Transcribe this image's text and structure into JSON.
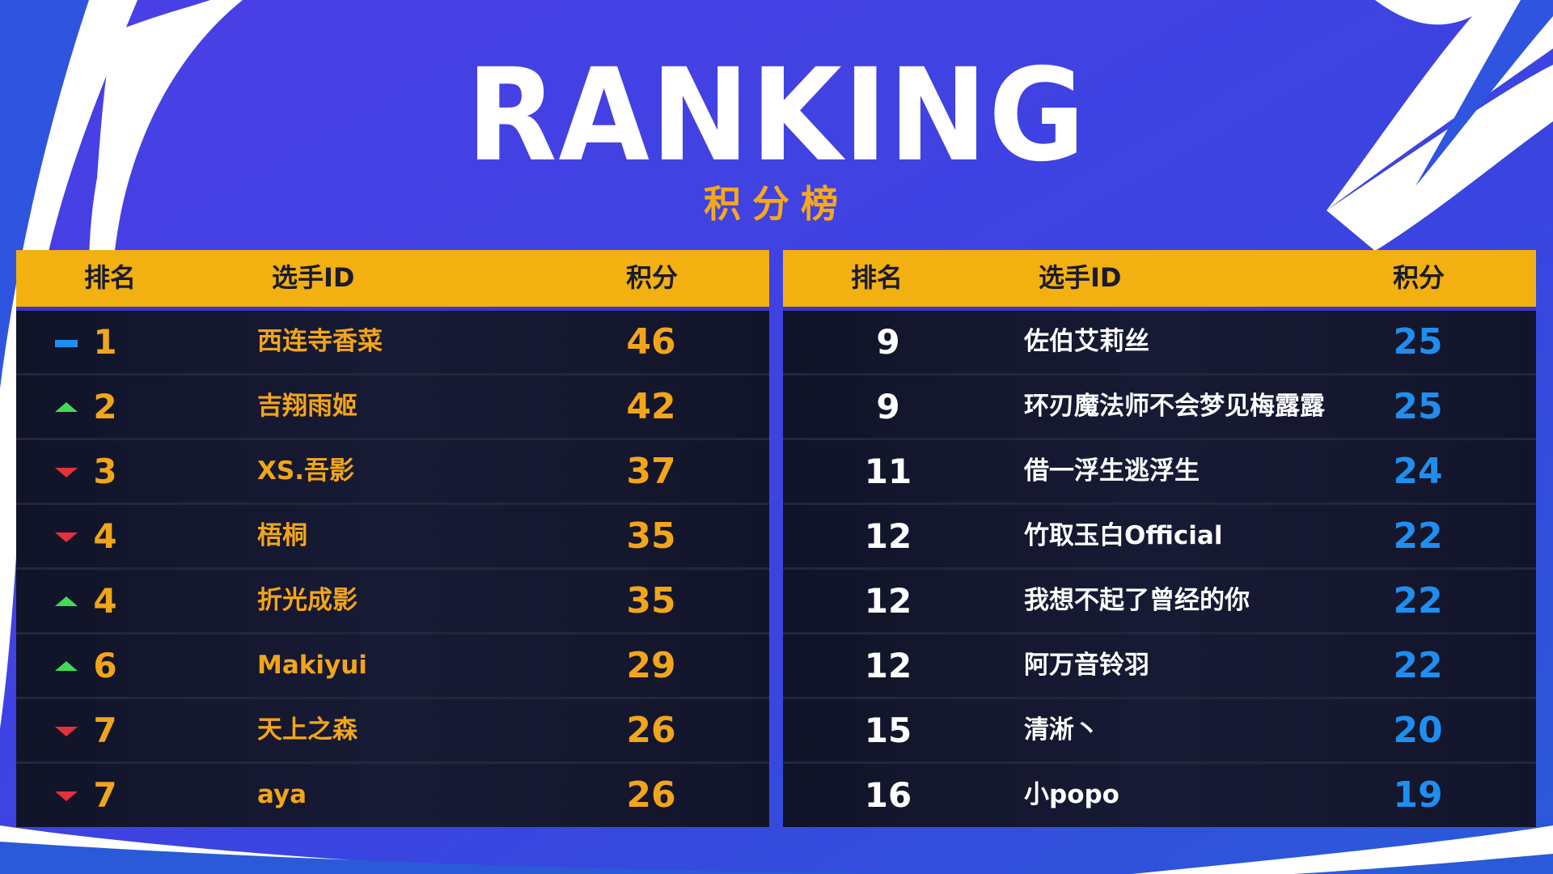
{
  "title": "RANKING",
  "subtitle": "积分榜",
  "columns": {
    "rank": "排名",
    "player": "选手ID",
    "score": "积分"
  },
  "colors": {
    "background": "#3b3ee0",
    "header": "#f2b011",
    "row": "#14172e",
    "gold_text": "#f2a51a",
    "blue_score": "#1f8ef0",
    "trend_up": "#42d957",
    "trend_down": "#e5313a",
    "trend_same": "#1e8ef1"
  },
  "left_table": [
    {
      "trend": "same",
      "rank": "1",
      "player": "西连寺香菜",
      "score": "46"
    },
    {
      "trend": "up",
      "rank": "2",
      "player": "吉翔雨姬",
      "score": "42"
    },
    {
      "trend": "down",
      "rank": "3",
      "player": "XS.吾影",
      "score": "37"
    },
    {
      "trend": "down",
      "rank": "4",
      "player": "梧桐",
      "score": "35"
    },
    {
      "trend": "up",
      "rank": "4",
      "player": "折光成影",
      "score": "35"
    },
    {
      "trend": "up",
      "rank": "6",
      "player": "Makiyui",
      "score": "29"
    },
    {
      "trend": "down",
      "rank": "7",
      "player": "天上之森",
      "score": "26"
    },
    {
      "trend": "down",
      "rank": "7",
      "player": "aya",
      "score": "26"
    }
  ],
  "right_table": [
    {
      "rank": "9",
      "player": "佐伯艾莉丝",
      "score": "25"
    },
    {
      "rank": "9",
      "player": "环刃魔法师不会梦见梅露露",
      "score": "25"
    },
    {
      "rank": "11",
      "player": "借一浮生逃浮生",
      "score": "24"
    },
    {
      "rank": "12",
      "player": "竹取玉白Official",
      "score": "22"
    },
    {
      "rank": "12",
      "player": "我想不起了曾经的你",
      "score": "22"
    },
    {
      "rank": "12",
      "player": "阿万音铃羽",
      "score": "22"
    },
    {
      "rank": "15",
      "player": "清淅丶",
      "score": "20"
    },
    {
      "rank": "16",
      "player": "小popo",
      "score": "19"
    }
  ]
}
